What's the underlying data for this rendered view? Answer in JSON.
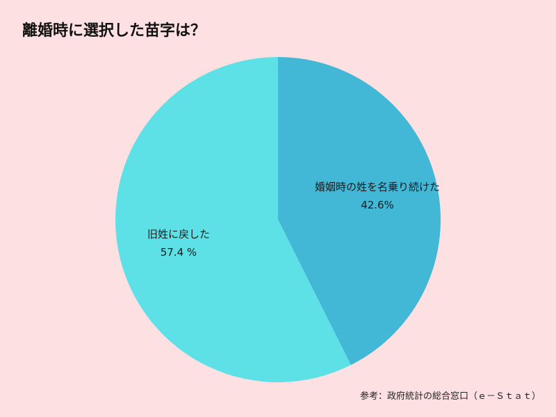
{
  "chart_data": {
    "type": "pie",
    "title": "離婚時に選択した苗字は？",
    "slices": [
      {
        "name": "婚姻時の姓を名乗り続けた",
        "value": 42.6,
        "value_label": "42.6%",
        "color": "#42b7d6"
      },
      {
        "name": "旧姓に戻した",
        "value": 57.4,
        "value_label": "57.4 %",
        "color": "#5de1e6"
      }
    ],
    "start": "top",
    "direction": "clockwise",
    "legend": "none"
  },
  "source_note": "参考：政府統計の総合窓口（ｅ－Ｓｔａｔ）"
}
